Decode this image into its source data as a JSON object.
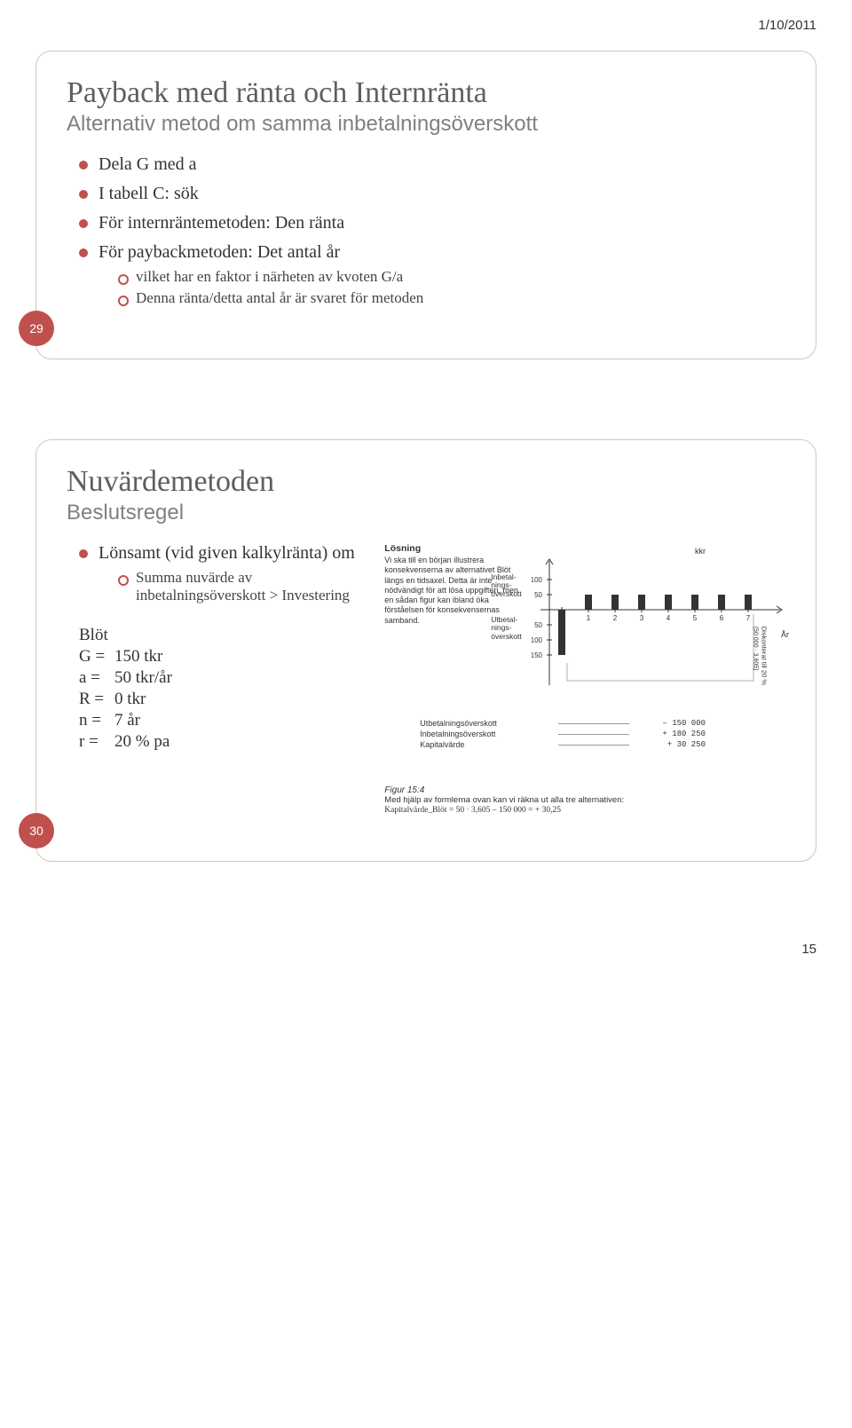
{
  "page": {
    "date": "1/10/2011",
    "footer_page": "15"
  },
  "slide1": {
    "number": "29",
    "title": "Payback med ränta och Internränta",
    "subtitle": "Alternativ metod om samma inbetalningsöverskott",
    "b1": "Dela G med a",
    "b2": "I tabell C: sök",
    "b3": "För internräntemetoden: Den ränta",
    "b4": "För paybackmetoden: Det antal år",
    "b4a": "vilket har en faktor i närheten av kvoten G/a",
    "b4b": "Denna ränta/detta antal år är svaret för metoden"
  },
  "slide2": {
    "number": "30",
    "title": "Nuvärdemetoden",
    "subtitle": "Beslutsregel",
    "b1": "Lönsamt (vid given kalkylränta) om",
    "b1a": "Summa nuvärde av inbetalningsöverskott > Investering",
    "params_title": "Blöt",
    "p_G": "G =",
    "p_G_v": "150 tkr",
    "p_a": "a =",
    "p_a_v": "50 tkr/år",
    "p_R": "R =",
    "p_R_v": "0 tkr",
    "p_n": "n =",
    "p_n_v": "7 år",
    "p_r": "r =",
    "p_r_v": "20 % pa",
    "fig": {
      "losning_title": "Lösning",
      "losning_text": "Vi ska till en början illustrera konsekvenserna av alternativet Blöt längs en tidsaxel. Detta är inte nödvändigt för att lösa uppgiften, men en sådan figur kan ibland öka förståelsen för konsekvensernas samband.",
      "kkr": "kkr",
      "label_in": "Inbetal-\nnings-\növerskott",
      "label_out": "Utbetal-\nnings-\növerskott",
      "ar": "År",
      "y_in_ticks": [
        "100",
        "50"
      ],
      "y_out_ticks": [
        "50",
        "100",
        "150"
      ],
      "x_ticks": [
        "0",
        "1",
        "2",
        "3",
        "4",
        "5",
        "6",
        "7"
      ],
      "row_utb": "Utbetalningsöverskott",
      "row_utb_v": "– 150 000",
      "row_inb": "Inbetalningsöverskott",
      "row_inb_v": "+ 180 250",
      "row_kap": "Kapitalvärde",
      "row_kap_v": "+  30 250",
      "disk_main": "Diskonterat till 20 %",
      "disk_sub": "(50 000 · 3,605)",
      "fig_caption": "Figur 15:4",
      "bottom_text": "Med hjälp av formlerna ovan kan vi räkna ut alla tre alternativen:",
      "formula": "Kapitalvärde_Blöt = 50 · 3,605 – 150 000 = + 30,25"
    }
  }
}
